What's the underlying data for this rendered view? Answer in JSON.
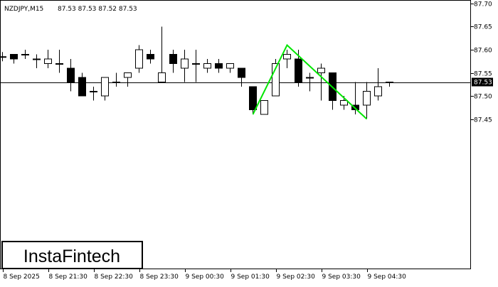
{
  "header": {
    "symbol": "NZDJPY,M15",
    "ohlc": "87.53 87.53 87.52 87.53"
  },
  "logo": {
    "text": "InstaFintech"
  },
  "colors": {
    "background": "#ffffff",
    "frame": "#000000",
    "bull_body": "#ffffff",
    "bear_body": "#000000",
    "candle_outline": "#000000",
    "pattern_line": "#00e600",
    "current_price_label_bg": "#000000",
    "current_price_label_text": "#ffffff"
  },
  "chart_data": {
    "type": "candlestick",
    "symbol": "NZDJPY",
    "timeframe": "M15",
    "y_axis": {
      "ticks": [
        "87.70",
        "87.65",
        "87.60",
        "87.55",
        "87.50",
        "87.45"
      ],
      "range": [
        87.4,
        87.7
      ]
    },
    "x_axis": {
      "ticks": [
        {
          "label": "8 Sep 2025",
          "candle_index": 0
        },
        {
          "label": "8 Sep 21:30",
          "candle_index": 4
        },
        {
          "label": "8 Sep 22:30",
          "candle_index": 8
        },
        {
          "label": "8 Sep 23:30",
          "candle_index": 12
        },
        {
          "label": "9 Sep 00:30",
          "candle_index": 16
        },
        {
          "label": "9 Sep 01:30",
          "candle_index": 20
        },
        {
          "label": "9 Sep 02:30",
          "candle_index": 24
        },
        {
          "label": "9 Sep 03:30",
          "candle_index": 28
        },
        {
          "label": "9 Sep 04:30",
          "candle_index": 32
        }
      ]
    },
    "current_price": 87.53,
    "current_price_label": "87.53",
    "candles": [
      {
        "o": 87.585,
        "h": 87.595,
        "l": 87.575,
        "c": 87.585
      },
      {
        "o": 87.59,
        "h": 87.59,
        "l": 87.57,
        "c": 87.58
      },
      {
        "o": 87.59,
        "h": 87.6,
        "l": 87.58,
        "c": 87.59
      },
      {
        "o": 87.58,
        "h": 87.59,
        "l": 87.56,
        "c": 87.58
      },
      {
        "o": 87.57,
        "h": 87.6,
        "l": 87.56,
        "c": 87.58
      },
      {
        "o": 87.57,
        "h": 87.6,
        "l": 87.55,
        "c": 87.57
      },
      {
        "o": 87.56,
        "h": 87.58,
        "l": 87.51,
        "c": 87.53
      },
      {
        "o": 87.54,
        "h": 87.55,
        "l": 87.5,
        "c": 87.5
      },
      {
        "o": 87.51,
        "h": 87.52,
        "l": 87.49,
        "c": 87.51
      },
      {
        "o": 87.5,
        "h": 87.54,
        "l": 87.49,
        "c": 87.54
      },
      {
        "o": 87.53,
        "h": 87.55,
        "l": 87.52,
        "c": 87.53
      },
      {
        "o": 87.54,
        "h": 87.55,
        "l": 87.52,
        "c": 87.55
      },
      {
        "o": 87.56,
        "h": 87.61,
        "l": 87.55,
        "c": 87.6
      },
      {
        "o": 87.59,
        "h": 87.6,
        "l": 87.57,
        "c": 87.58
      },
      {
        "o": 87.53,
        "h": 87.65,
        "l": 87.53,
        "c": 87.55
      },
      {
        "o": 87.59,
        "h": 87.6,
        "l": 87.55,
        "c": 87.57
      },
      {
        "o": 87.56,
        "h": 87.6,
        "l": 87.53,
        "c": 87.58
      },
      {
        "o": 87.57,
        "h": 87.6,
        "l": 87.53,
        "c": 87.57
      },
      {
        "o": 87.56,
        "h": 87.58,
        "l": 87.55,
        "c": 87.57
      },
      {
        "o": 87.57,
        "h": 87.58,
        "l": 87.55,
        "c": 87.56
      },
      {
        "o": 87.56,
        "h": 87.57,
        "l": 87.55,
        "c": 87.57
      },
      {
        "o": 87.56,
        "h": 87.56,
        "l": 87.52,
        "c": 87.54
      },
      {
        "o": 87.52,
        "h": 87.52,
        "l": 87.46,
        "c": 87.47
      },
      {
        "o": 87.46,
        "h": 87.49,
        "l": 87.46,
        "c": 87.49
      },
      {
        "o": 87.5,
        "h": 87.58,
        "l": 87.5,
        "c": 87.57
      },
      {
        "o": 87.58,
        "h": 87.6,
        "l": 87.56,
        "c": 87.59
      },
      {
        "o": 87.58,
        "h": 87.6,
        "l": 87.52,
        "c": 87.53
      },
      {
        "o": 87.54,
        "h": 87.55,
        "l": 87.51,
        "c": 87.54
      },
      {
        "o": 87.55,
        "h": 87.57,
        "l": 87.49,
        "c": 87.56
      },
      {
        "o": 87.55,
        "h": 87.55,
        "l": 87.47,
        "c": 87.49
      },
      {
        "o": 87.48,
        "h": 87.5,
        "l": 87.47,
        "c": 87.49
      },
      {
        "o": 87.48,
        "h": 87.53,
        "l": 87.46,
        "c": 87.47
      },
      {
        "o": 87.48,
        "h": 87.53,
        "l": 87.45,
        "c": 87.51
      },
      {
        "o": 87.5,
        "h": 87.56,
        "l": 87.49,
        "c": 87.52
      },
      {
        "o": 87.53,
        "h": 87.53,
        "l": 87.52,
        "c": 87.53
      }
    ],
    "pattern": {
      "type": "double-top",
      "points": [
        {
          "candle_index": 22,
          "price": 87.46
        },
        {
          "candle_index": 25,
          "price": 87.61
        },
        {
          "candle_index": 32,
          "price": 87.45
        }
      ]
    }
  }
}
